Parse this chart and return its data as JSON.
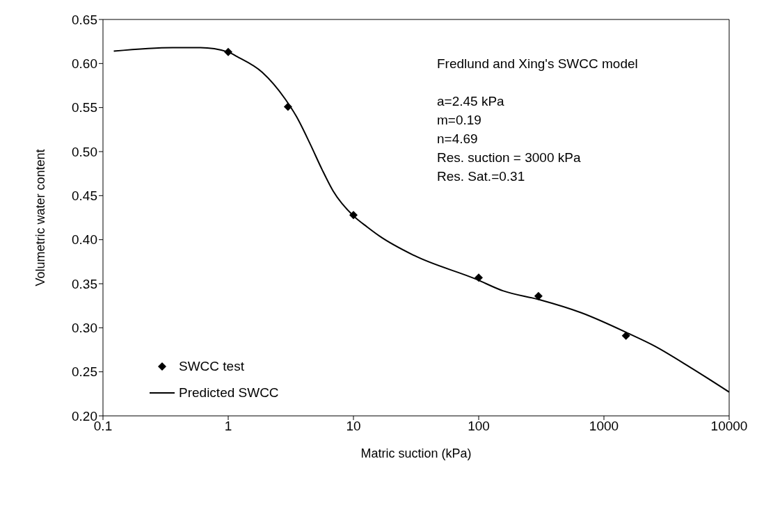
{
  "chart_data": {
    "type": "line",
    "xlabel": "Matric suction (kPa)",
    "ylabel": "Volumetric water content",
    "log": "x",
    "xlim": [
      0.1,
      10000
    ],
    "xticks": [
      0.1,
      1,
      10,
      100,
      1000,
      10000
    ],
    "ylim": [
      0.2,
      0.65
    ],
    "yticks": [
      {
        "value": 0.2,
        "label": "0.20"
      },
      0.25,
      {
        "value": 0.3,
        "label": "0.30"
      },
      0.35,
      {
        "value": 0.4,
        "label": "0.40"
      },
      0.45,
      {
        "value": 0.5,
        "label": "0.50"
      },
      0.55,
      {
        "value": 0.6,
        "label": "0.60"
      },
      0.65
    ],
    "grid": false,
    "legend": "bottom left",
    "series": [
      {
        "name": "SWCC test",
        "type": "scatter",
        "marker": "diamond",
        "color": "#000000",
        "x": [
          1,
          3,
          10,
          100,
          300,
          1500
        ],
        "values": [
          0.613,
          0.551,
          0.428,
          0.357,
          0.336,
          0.291
        ]
      },
      {
        "name": "Predicted SWCC",
        "marker": "none",
        "line_style": "solid",
        "color": "#000000",
        "x": [
          0.122,
          0.36,
          0.6,
          1,
          1.17,
          1.87,
          2.84,
          3.5,
          4.5,
          5.6,
          6.9,
          10,
          13,
          16.2,
          30.6,
          96,
          156,
          303,
          660,
          1600,
          2480,
          4900,
          10000
        ],
        "values": [
          0.614,
          0.618,
          0.618,
          0.613,
          0.608,
          0.59,
          0.56,
          0.54,
          0.509,
          0.48,
          0.455,
          0.427,
          0.414,
          0.404,
          0.382,
          0.355,
          0.342,
          0.332,
          0.317,
          0.293,
          0.28,
          0.255,
          0.227
        ]
      }
    ],
    "annotations": [
      "Fredlund and Xing's SWCC model",
      "a=2.45 kPa",
      "m=0.19",
      "n=4.69",
      "Res. suction = 3000 kPa",
      "Res. Sat.=0.31"
    ]
  }
}
